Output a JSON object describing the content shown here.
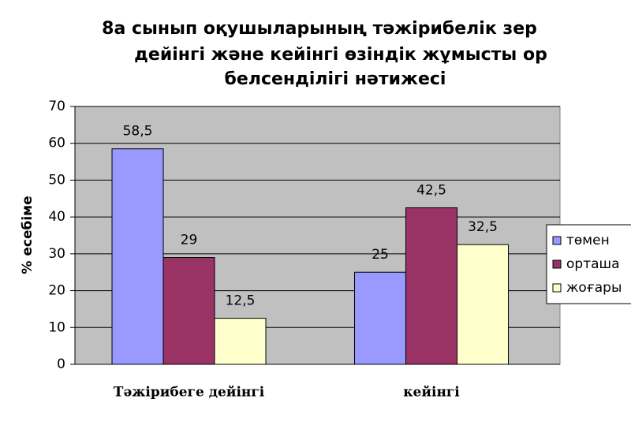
{
  "chart_data": {
    "type": "bar",
    "title": [
      "8а сынып оқушыларының тәжірибелік зер",
      "дейінгі және кейінгі өзіндік жұмысты ор",
      "белсенділігі нәтижесі"
    ],
    "y_label": "% есебіме",
    "categories": [
      "Тәжірибеге дейінгі",
      "кейінгі"
    ],
    "series": [
      {
        "name": "төмен",
        "color": "#9999ff",
        "values": [
          58.5,
          25
        ],
        "value_labels": [
          "58,5",
          "25"
        ]
      },
      {
        "name": "орташа",
        "color": "#993366",
        "values": [
          29,
          42.5
        ],
        "value_labels": [
          "29",
          "42,5"
        ]
      },
      {
        "name": "жоғары",
        "color": "#ffffcc",
        "values": [
          12.5,
          32.5
        ],
        "value_labels": [
          "12,5",
          "32,5"
        ]
      }
    ],
    "ylim": [
      0,
      70
    ],
    "yticks": [
      0,
      10,
      20,
      30,
      40,
      50,
      60,
      70
    ],
    "grid": true,
    "plot_background": "#c0c0c0",
    "legend": "right"
  }
}
